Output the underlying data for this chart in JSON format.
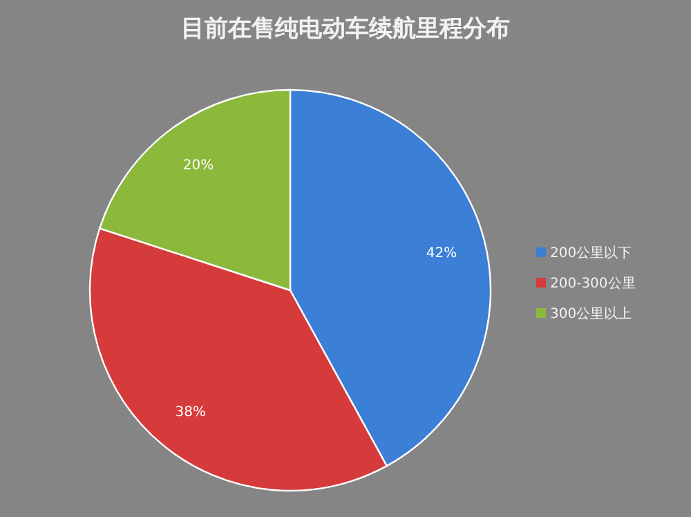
{
  "chart_data": {
    "type": "pie",
    "title": "目前在售纯电动车续航里程分布",
    "categories": [
      "200公里以下",
      "200-300公里",
      "300公里以上"
    ],
    "values": [
      42,
      38,
      20
    ],
    "value_labels": [
      "42%",
      "38%",
      "20%"
    ],
    "colors": [
      "#3b7fd6",
      "#d63b3b",
      "#8cb83c"
    ],
    "legend": "right"
  }
}
